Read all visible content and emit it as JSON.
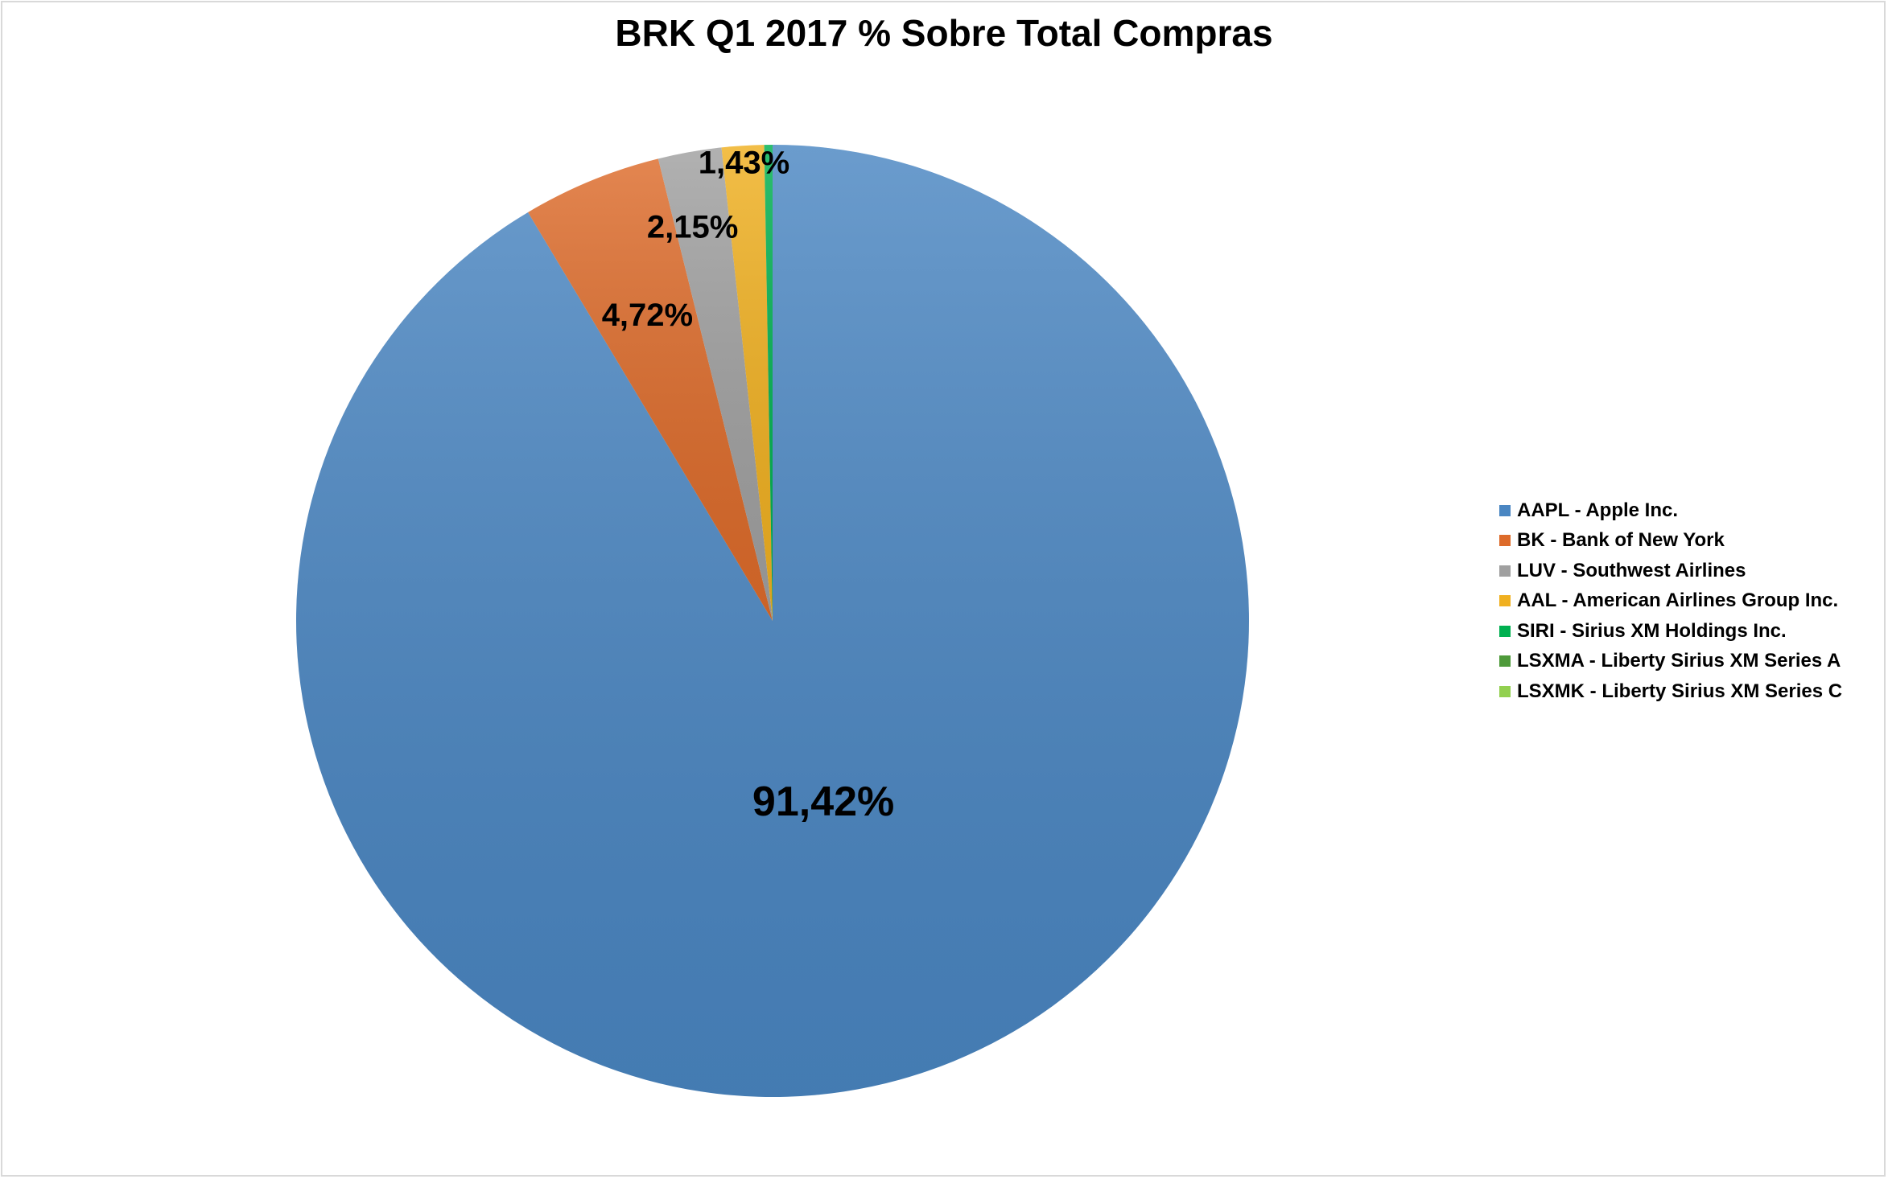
{
  "chart_data": {
    "type": "pie",
    "title": "BRK Q1 2017 % Sobre Total Compras",
    "slices": [
      {
        "label": "AAPL - Apple Inc.",
        "value": 91.42,
        "value_label": "91,42%",
        "color": "#4a86c2"
      },
      {
        "label": "BK - Bank of New York",
        "value": 4.72,
        "value_label": "4,72%",
        "color": "#dd6b2a"
      },
      {
        "label": "LUV - Southwest Airlines",
        "value": 2.15,
        "value_label": "2,15%",
        "color": "#a0a0a0"
      },
      {
        "label": "AAL - American Airlines Group Inc.",
        "value": 1.43,
        "value_label": "1,43%",
        "color": "#f0b020"
      },
      {
        "label": "SIRI - Sirius XM Holdings Inc.",
        "value": 0.28,
        "value_label": "",
        "color": "#00b050"
      },
      {
        "label": "LSXMA - Liberty Sirius XM Series A",
        "value": 0.0,
        "value_label": "",
        "color": "#4e9a3a"
      },
      {
        "label": "LSXMK - Liberty Sirius XM Series C",
        "value": 0.0,
        "value_label": "",
        "color": "#92d050"
      }
    ],
    "legend_position": "right"
  }
}
